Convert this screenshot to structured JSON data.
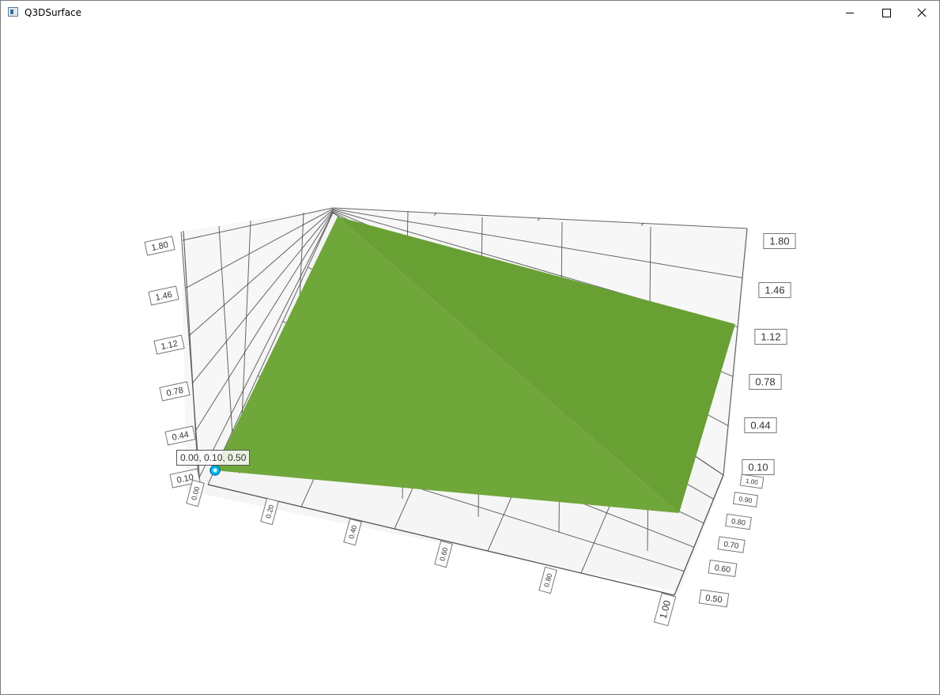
{
  "window": {
    "title": "Q3DSurface",
    "controls": {
      "minimize_icon": "minimize-icon",
      "maximize_icon": "maximize-icon",
      "close_icon": "close-icon"
    }
  },
  "selection": {
    "label": "0.00, 0.10, 0.50"
  },
  "colors": {
    "surface_front": "#6fa73a",
    "surface_back": "#68a033",
    "selection_point": "#00bfff",
    "floor": "#f5f5f5",
    "wall": "#f7f7f7",
    "grid": "#4a4a4a"
  },
  "chart_data": {
    "type": "surface",
    "title": "",
    "x_axis": {
      "label": "",
      "range": [
        0.0,
        1.0
      ],
      "ticks": [
        "0.00",
        "0.20",
        "0.40",
        "0.60",
        "0.80",
        "1.00"
      ]
    },
    "y_axis": {
      "label": "",
      "range": [
        0.1,
        1.8
      ],
      "ticks": [
        "0.10",
        "0.44",
        "0.78",
        "1.12",
        "1.46",
        "1.80"
      ]
    },
    "z_axis": {
      "label": "",
      "range": [
        0.5,
        1.0
      ],
      "ticks": [
        "0.50",
        "0.60",
        "0.70",
        "0.80",
        "0.90",
        "1.00"
      ]
    },
    "grid": true,
    "series": [
      {
        "points": [
          {
            "x": 0.0,
            "z": 0.5,
            "y": 0.1
          },
          {
            "x": 1.0,
            "z": 0.5,
            "y": 0.1
          },
          {
            "x": 0.0,
            "z": 1.0,
            "y": 1.8
          },
          {
            "x": 1.0,
            "z": 1.0,
            "y": 1.3
          }
        ]
      }
    ],
    "selected_point": {
      "x": 0.0,
      "y": 0.1,
      "z": 0.5
    }
  }
}
